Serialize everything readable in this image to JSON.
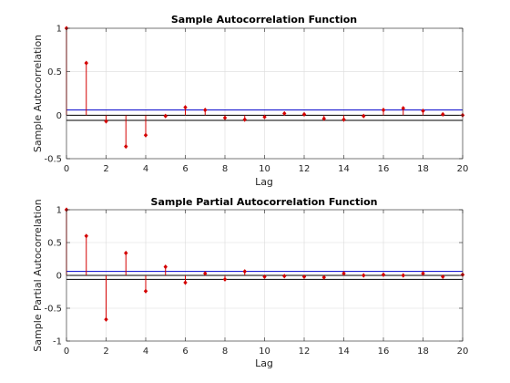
{
  "colors": {
    "stem": "#d40000",
    "upper_bound": "#0000cc",
    "lower_bound": "#000000",
    "grid": "#dcdcdc"
  },
  "chart_data": [
    {
      "type": "stem",
      "title": "Sample Autocorrelation Function",
      "xlabel": "Lag",
      "ylabel": "Sample Autocorrelation",
      "xlim": [
        0,
        20
      ],
      "ylim": [
        -0.5,
        1
      ],
      "xticks": [
        0,
        2,
        4,
        6,
        8,
        10,
        12,
        14,
        16,
        18,
        20
      ],
      "yticks": [
        -0.5,
        0,
        0.5,
        1
      ],
      "ytick_labels": [
        "-0.5",
        "0",
        "0.5",
        "1"
      ],
      "grid": true,
      "x": [
        0,
        1,
        2,
        3,
        4,
        5,
        6,
        7,
        8,
        9,
        10,
        11,
        12,
        13,
        14,
        15,
        16,
        17,
        18,
        19,
        20
      ],
      "values": [
        1.0,
        0.6,
        -0.07,
        -0.36,
        -0.23,
        -0.01,
        0.09,
        0.06,
        -0.03,
        -0.05,
        -0.02,
        0.02,
        0.01,
        -0.04,
        -0.05,
        -0.01,
        0.06,
        0.08,
        0.05,
        0.01,
        0.0
      ],
      "confidence_bounds": [
        0.06,
        -0.06
      ]
    },
    {
      "type": "stem",
      "title": "Sample Partial Autocorrelation Function",
      "xlabel": "Lag",
      "ylabel": "Sample Partial Autocorrelation",
      "xlim": [
        0,
        20
      ],
      "ylim": [
        -1,
        1
      ],
      "xticks": [
        0,
        2,
        4,
        6,
        8,
        10,
        12,
        14,
        16,
        18,
        20
      ],
      "yticks": [
        -1,
        -0.5,
        0,
        0.5,
        1
      ],
      "ytick_labels": [
        "-1",
        "-0.5",
        "0",
        "0.5",
        "1"
      ],
      "grid": true,
      "x": [
        0,
        1,
        2,
        3,
        4,
        5,
        6,
        7,
        8,
        9,
        10,
        11,
        12,
        13,
        14,
        15,
        16,
        17,
        18,
        19,
        20
      ],
      "values": [
        1.0,
        0.6,
        -0.67,
        0.34,
        -0.24,
        0.13,
        -0.11,
        0.03,
        -0.06,
        0.06,
        -0.02,
        -0.01,
        -0.02,
        -0.03,
        0.03,
        0.0,
        0.01,
        0.0,
        0.03,
        -0.02,
        0.01
      ],
      "confidence_bounds": [
        0.06,
        -0.06
      ]
    }
  ]
}
